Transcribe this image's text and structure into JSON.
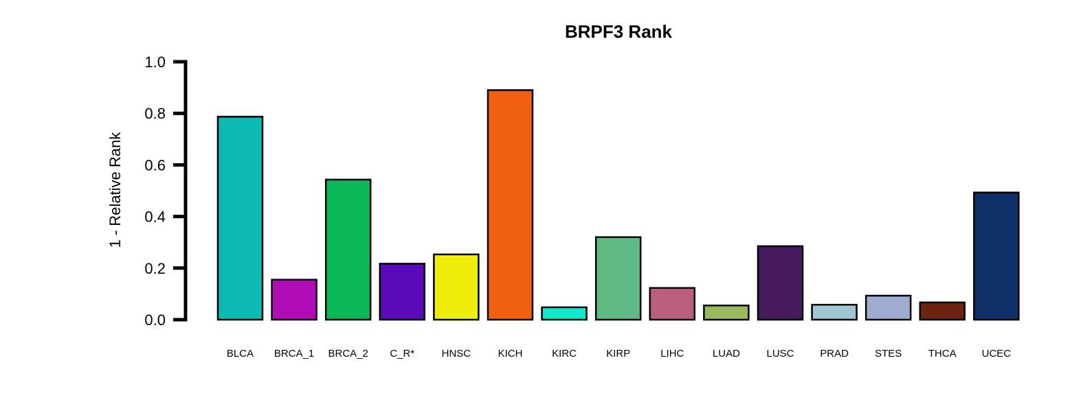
{
  "chart_data": {
    "type": "bar",
    "title": "BRPF3 Rank",
    "xlabel": "",
    "ylabel": "1 - Relative Rank",
    "ylim": [
      0,
      1.0
    ],
    "yticks": [
      "0.0",
      "0.2",
      "0.4",
      "0.6",
      "0.8",
      "1.0"
    ],
    "grid": false,
    "categories": [
      "BLCA",
      "BRCA_1",
      "BRCA_2",
      "C_R*",
      "HNSC",
      "KICH",
      "KIRC",
      "KIRP",
      "LIHC",
      "LUAD",
      "LUSC",
      "PRAD",
      "STES",
      "THCA",
      "UCEC"
    ],
    "values": [
      0.787,
      0.155,
      0.543,
      0.217,
      0.253,
      0.89,
      0.048,
      0.32,
      0.123,
      0.055,
      0.285,
      0.058,
      0.093,
      0.067,
      0.493
    ],
    "colors": [
      "#0BBAB2",
      "#B30BB9",
      "#0AB85A",
      "#5A0AB7",
      "#EEEE0A",
      "#F06010",
      "#0DEBCC",
      "#5FB983",
      "#BB5F7F",
      "#97BA60",
      "#461B5F",
      "#9FC4D2",
      "#9EACD2",
      "#6A2410",
      "#0E2F68"
    ]
  }
}
